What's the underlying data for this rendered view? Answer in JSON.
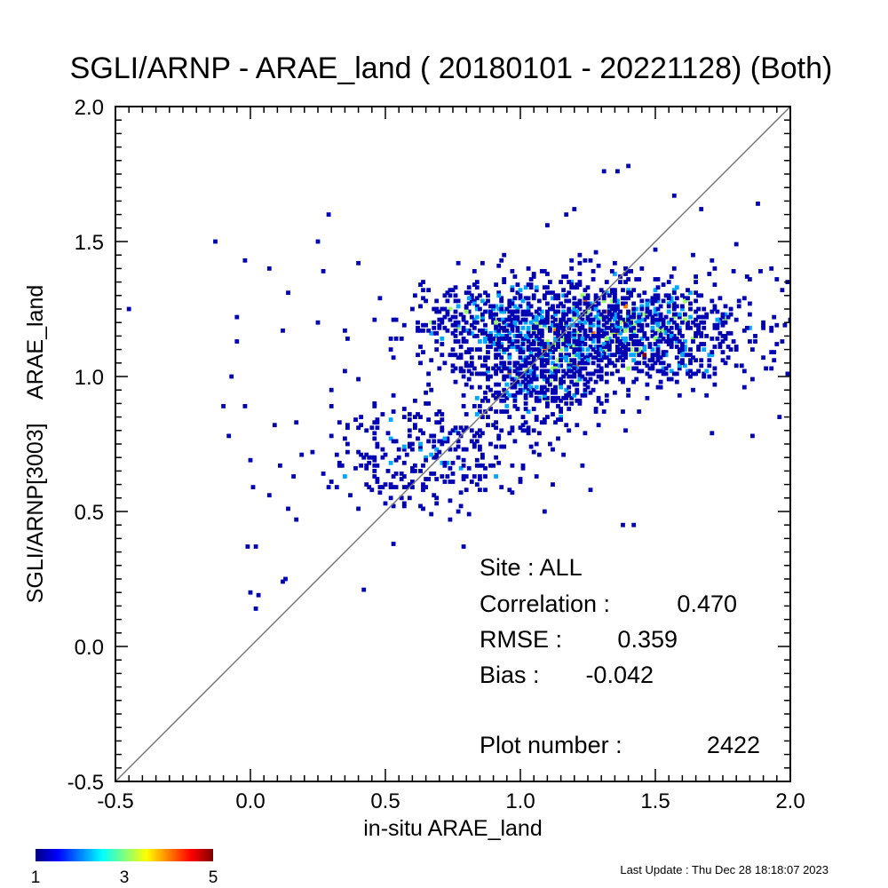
{
  "chart_data": {
    "type": "heatmap",
    "title": "SGLI/ARNP - ARAE_land ( 20180101 - 20221128) (Both)",
    "xlabel": "in-situ ARAE_land",
    "ylabel": "SGLI/ARNP[3003]    ARAE_land",
    "xlim": [
      -0.5,
      2.0
    ],
    "ylim": [
      -0.5,
      2.0
    ],
    "x_ticks": [
      "-0.5",
      "0.0",
      "0.5",
      "1.0",
      "1.5",
      "2.0"
    ],
    "y_ticks": [
      "-0.5",
      "0.0",
      "0.5",
      "1.0",
      "1.5",
      "2.0"
    ],
    "reference_line": "1:1",
    "bin_size": 0.01,
    "colorbar": {
      "min": 1,
      "max": 5,
      "ticks": [
        "1",
        "3",
        "5"
      ],
      "colormap": "jet"
    },
    "density_clusters": [
      {
        "cx": 1.3,
        "cy": 1.17,
        "sx": 0.26,
        "sy": 0.1,
        "n": 1500
      },
      {
        "cx": 1.05,
        "cy": 0.98,
        "sx": 0.12,
        "sy": 0.08,
        "n": 350
      },
      {
        "cx": 0.65,
        "cy": 0.72,
        "sx": 0.22,
        "sy": 0.11,
        "n": 330
      },
      {
        "cx": 0.85,
        "cy": 1.2,
        "sx": 0.15,
        "sy": 0.07,
        "n": 240
      }
    ],
    "points": [
      [
        -0.45,
        1.25
      ],
      [
        -0.13,
        1.5
      ],
      [
        -0.02,
        1.43
      ],
      [
        -0.05,
        1.22
      ],
      [
        -0.05,
        1.13
      ],
      [
        -0.07,
        1.0
      ],
      [
        -0.1,
        0.89
      ],
      [
        -0.02,
        0.89
      ],
      [
        0.0,
        0.69
      ],
      [
        0.01,
        0.59
      ],
      [
        0.02,
        0.37
      ],
      [
        -0.01,
        0.37
      ],
      [
        0.0,
        0.2
      ],
      [
        0.02,
        0.14
      ],
      [
        0.03,
        0.19
      ],
      [
        0.12,
        0.24
      ],
      [
        0.13,
        0.25
      ],
      [
        0.29,
        1.6
      ],
      [
        0.25,
        1.5
      ],
      [
        0.14,
        1.31
      ],
      [
        0.25,
        1.2
      ],
      [
        0.12,
        1.17
      ],
      [
        0.4,
        1.42
      ],
      [
        0.42,
        0.21
      ],
      [
        0.53,
        0.38
      ],
      [
        0.27,
        1.39
      ],
      [
        0.36,
        1.14
      ],
      [
        0.07,
        1.4
      ],
      [
        0.35,
        1.02
      ],
      [
        1.4,
        1.78
      ],
      [
        1.36,
        1.76
      ],
      [
        1.31,
        1.76
      ],
      [
        1.57,
        1.67
      ],
      [
        1.88,
        1.64
      ],
      [
        1.67,
        1.62
      ],
      [
        1.38,
        0.45
      ],
      [
        1.42,
        0.45
      ],
      [
        1.96,
        0.85
      ],
      [
        1.86,
        0.78
      ],
      [
        1.71,
        0.79
      ],
      [
        1.93,
        1.09
      ],
      [
        1.93,
        1.4
      ],
      [
        1.97,
        1.32
      ],
      [
        1.99,
        1.35
      ],
      [
        0.87,
        0.58
      ],
      [
        0.97,
        0.57
      ],
      [
        1.23,
        0.67
      ],
      [
        1.2,
        1.62
      ],
      [
        1.1,
        1.56
      ],
      [
        1.17,
        1.6
      ],
      [
        1.8,
        1.49
      ],
      [
        1.72,
        1.4
      ],
      [
        1.64,
        1.45
      ],
      [
        1.12,
        0.6
      ]
    ],
    "stats": [
      {
        "label": "Site : ALL",
        "value": ""
      },
      {
        "label": "Correlation :",
        "value": "0.470"
      },
      {
        "label": "RMSE :",
        "value": "0.359"
      },
      {
        "label": "Bias :",
        "value": "-0.042"
      },
      {
        "label": "Plot number :",
        "value": "2422"
      }
    ]
  },
  "footer": {
    "last_update": "Last Update : Thu Dec 28 18:18:07 2023"
  },
  "colors": {
    "identity_line": "#777777",
    "axes": "#000000",
    "background": "#ffffff"
  }
}
